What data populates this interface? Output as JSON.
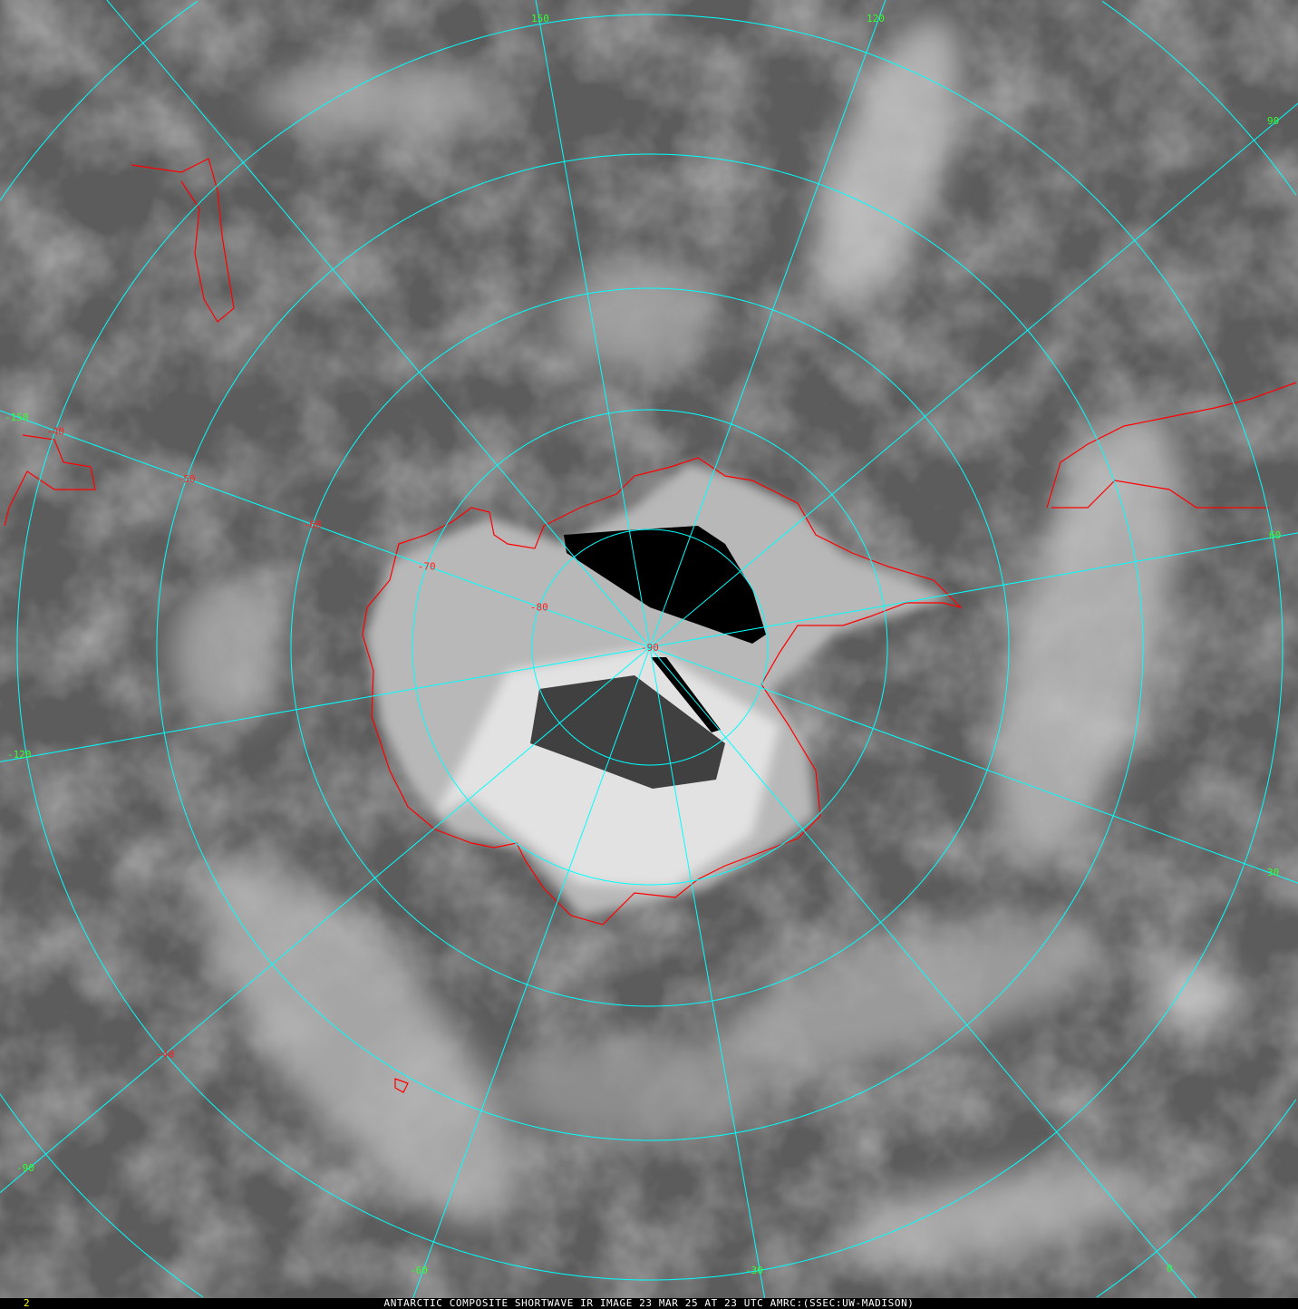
{
  "caption": "ANTARCTIC COMPOSITE SHORTWAVE IR IMAGE 23 MAR 25 AT 23 UTC AMRC:(SSEC:UW-MADISON)",
  "frame_number": "2",
  "colors": {
    "graticule": "#00ffff",
    "coastline": "#ff0000",
    "longitude_labels": "#33ff33",
    "latitude_labels": "#ff2020",
    "caption_text": "#ffffff",
    "frame_number": "#ffff00"
  },
  "projection": "south polar stereographic",
  "longitude_labels": [
    "150",
    "120",
    "90",
    "60",
    "30",
    "0",
    "-30",
    "-60",
    "-90",
    "-120",
    "-150"
  ],
  "latitude_labels": [
    "-40",
    "-50",
    "-60",
    "-70",
    "-80",
    "-90"
  ],
  "latitude_labels_secondary": [
    "-40"
  ]
}
